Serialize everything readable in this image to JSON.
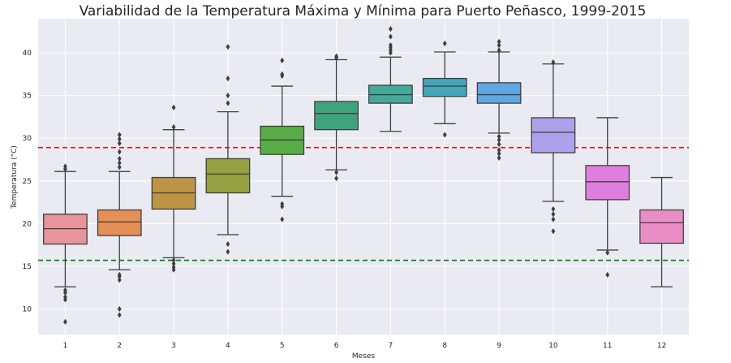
{
  "chart_data": {
    "type": "box",
    "title": "Variabilidad de la Temperatura Máxima y Mínima para Puerto Peñasco, 1999-2015",
    "xlabel": "Meses",
    "ylabel": "Temperatura (°C)",
    "ylim": [
      7,
      44
    ],
    "yticks": [
      10,
      15,
      20,
      25,
      30,
      35,
      40
    ],
    "grid": true,
    "categories": [
      "1",
      "2",
      "3",
      "4",
      "5",
      "6",
      "7",
      "8",
      "9",
      "10",
      "11",
      "12"
    ],
    "boxes": [
      {
        "month": "1",
        "whisker_low": 12.6,
        "q1": 17.6,
        "median": 19.4,
        "q3": 21.1,
        "whisker_high": 26.1,
        "outliers": [
          26.4,
          26.7,
          12.2,
          11.9,
          11.4,
          11.1,
          8.5
        ],
        "color": "#e8949a"
      },
      {
        "month": "2",
        "whisker_low": 14.6,
        "q1": 18.6,
        "median": 20.2,
        "q3": 21.6,
        "whisker_high": 26.1,
        "outliers": [
          26.6,
          27.1,
          27.6,
          28.4,
          29.4,
          29.9,
          30.4,
          14.0,
          13.8,
          13.4,
          10.0,
          9.3
        ],
        "color": "#e58e55"
      },
      {
        "month": "3",
        "whisker_low": 16.0,
        "q1": 21.7,
        "median": 23.6,
        "q3": 25.4,
        "whisker_high": 31.0,
        "outliers": [
          31.3,
          33.6,
          15.7,
          15.3,
          14.9,
          14.6
        ],
        "color": "#bc9445"
      },
      {
        "month": "4",
        "whisker_low": 18.7,
        "q1": 23.6,
        "median": 25.8,
        "q3": 27.6,
        "whisker_high": 33.1,
        "outliers": [
          34.1,
          35.0,
          37.0,
          40.7,
          17.6,
          16.7
        ],
        "color": "#95a040"
      },
      {
        "month": "5",
        "whisker_low": 23.2,
        "q1": 28.1,
        "median": 29.8,
        "q3": 31.4,
        "whisker_high": 36.1,
        "outliers": [
          37.3,
          37.5,
          39.1,
          22.3,
          22.0,
          20.5
        ],
        "color": "#59ad47"
      },
      {
        "month": "6",
        "whisker_low": 26.3,
        "q1": 31.0,
        "median": 32.9,
        "q3": 34.3,
        "whisker_high": 39.2,
        "outliers": [
          39.4,
          39.6,
          26.0,
          25.3
        ],
        "color": "#3fa47d"
      },
      {
        "month": "7",
        "whisker_low": 30.8,
        "q1": 34.1,
        "median": 35.1,
        "q3": 36.2,
        "whisker_high": 39.5,
        "outliers": [
          40.0,
          40.3,
          40.6,
          40.9,
          41.9,
          42.8
        ],
        "color": "#43a99a"
      },
      {
        "month": "8",
        "whisker_low": 31.7,
        "q1": 34.9,
        "median": 36.1,
        "q3": 37.0,
        "whisker_high": 40.1,
        "outliers": [
          41.1,
          30.4
        ],
        "color": "#43a7b9"
      },
      {
        "month": "9",
        "whisker_low": 30.6,
        "q1": 34.1,
        "median": 35.1,
        "q3": 36.5,
        "whisker_high": 40.1,
        "outliers": [
          40.3,
          40.9,
          41.3,
          30.2,
          29.8,
          29.3,
          28.6,
          28.2,
          27.7
        ],
        "color": "#5fa6e3"
      },
      {
        "month": "10",
        "whisker_low": 22.6,
        "q1": 28.3,
        "median": 30.7,
        "q3": 32.4,
        "whisker_high": 38.7,
        "outliers": [
          38.9,
          21.7,
          21.1,
          20.5,
          19.1
        ],
        "color": "#aea1ec"
      },
      {
        "month": "11",
        "whisker_low": 16.9,
        "q1": 22.8,
        "median": 24.9,
        "q3": 26.8,
        "whisker_high": 32.4,
        "outliers": [
          16.6,
          14.0
        ],
        "color": "#e07ee0"
      },
      {
        "month": "12",
        "whisker_low": 12.6,
        "q1": 17.7,
        "median": 20.1,
        "q3": 21.6,
        "whisker_high": 25.4,
        "outliers": [],
        "color": "#ea8dc7"
      }
    ],
    "reference_lines": [
      {
        "y": 28.9,
        "color": "#ff0000",
        "style": "dashed"
      },
      {
        "y": 15.7,
        "color": "#008000",
        "style": "dashed"
      }
    ]
  }
}
